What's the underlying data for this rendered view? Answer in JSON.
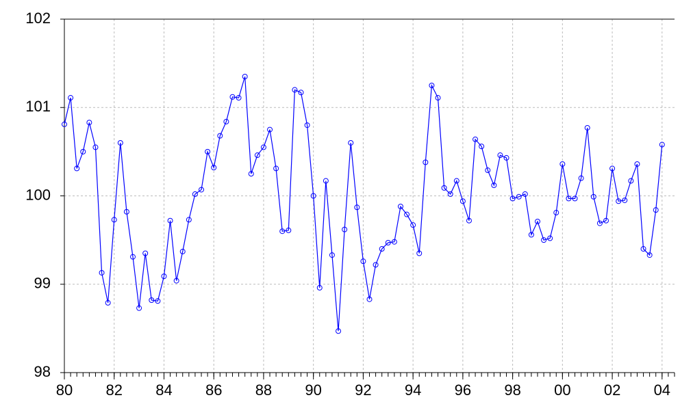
{
  "chart_data": {
    "type": "line",
    "x": [
      1980,
      1980.25,
      1980.5,
      1980.75,
      1981,
      1981.25,
      1981.5,
      1981.75,
      1982,
      1982.25,
      1982.5,
      1982.75,
      1983,
      1983.25,
      1983.5,
      1983.75,
      1984,
      1984.25,
      1984.5,
      1984.75,
      1985,
      1985.25,
      1985.5,
      1985.75,
      1986,
      1986.25,
      1986.5,
      1986.75,
      1987,
      1987.25,
      1987.5,
      1987.75,
      1988,
      1988.25,
      1988.5,
      1988.75,
      1989,
      1989.25,
      1989.5,
      1989.75,
      1990,
      1990.25,
      1990.5,
      1990.75,
      1991,
      1991.25,
      1991.5,
      1991.75,
      1992,
      1992.25,
      1992.5,
      1992.75,
      1993,
      1993.25,
      1993.5,
      1993.75,
      1994,
      1994.25,
      1994.5,
      1994.75,
      1995,
      1995.25,
      1995.5,
      1995.75,
      1996,
      1996.25,
      1996.5,
      1996.75,
      1997,
      1997.25,
      1997.5,
      1997.75,
      1998,
      1998.25,
      1998.5,
      1998.75,
      1999,
      1999.25,
      1999.5,
      1999.75,
      2000,
      2000.25,
      2000.5,
      2000.75,
      2001,
      2001.25,
      2001.5,
      2001.75,
      2002,
      2002.25,
      2002.5,
      2002.75,
      2003,
      2003.25,
      2003.5,
      2003.75,
      2004
    ],
    "series": [
      {
        "color": "#0000ff",
        "values": [
          100.81,
          101.11,
          100.31,
          100.5,
          100.83,
          100.55,
          99.13,
          98.79,
          99.73,
          100.6,
          99.82,
          99.31,
          98.73,
          99.35,
          98.82,
          98.81,
          99.09,
          99.72,
          99.04,
          99.37,
          99.73,
          100.02,
          100.07,
          100.5,
          100.32,
          100.68,
          100.84,
          101.12,
          101.11,
          101.35,
          100.25,
          100.46,
          100.55,
          100.75,
          100.31,
          99.6,
          99.61,
          101.2,
          101.17,
          100.8,
          100.0,
          98.96,
          100.17,
          99.33,
          98.47,
          99.62,
          100.6,
          99.87,
          99.26,
          98.83,
          99.22,
          99.4,
          99.47,
          99.48,
          99.88,
          99.79,
          99.67,
          99.35,
          100.38,
          101.25,
          101.11,
          100.09,
          100.02,
          100.17,
          99.94,
          99.72,
          100.64,
          100.56,
          100.29,
          100.12,
          100.46,
          100.43,
          99.97,
          99.99,
          100.02,
          99.56,
          99.71,
          99.5,
          99.52,
          99.81,
          100.36,
          99.97,
          99.97,
          100.2,
          100.77,
          99.99,
          99.69,
          99.72,
          100.31,
          99.94,
          99.95,
          100.17,
          100.36,
          99.4,
          99.33,
          99.84,
          100.58
        ]
      }
    ],
    "xlim": [
      1980,
      2004.5
    ],
    "xticks": [
      {
        "value": 1980,
        "label": "80"
      },
      {
        "value": 1982,
        "label": "82"
      },
      {
        "value": 1984,
        "label": "84"
      },
      {
        "value": 1986,
        "label": "86"
      },
      {
        "value": 1988,
        "label": "88"
      },
      {
        "value": 1990,
        "label": "90"
      },
      {
        "value": 1992,
        "label": "92"
      },
      {
        "value": 1994,
        "label": "94"
      },
      {
        "value": 1996,
        "label": "96"
      },
      {
        "value": 1998,
        "label": "98"
      },
      {
        "value": 2000,
        "label": "00"
      },
      {
        "value": 2002,
        "label": "02"
      },
      {
        "value": 2004,
        "label": "04"
      }
    ],
    "ylim": [
      98,
      102
    ],
    "yticks": [
      98,
      99,
      100,
      101,
      102
    ],
    "grid": true
  }
}
